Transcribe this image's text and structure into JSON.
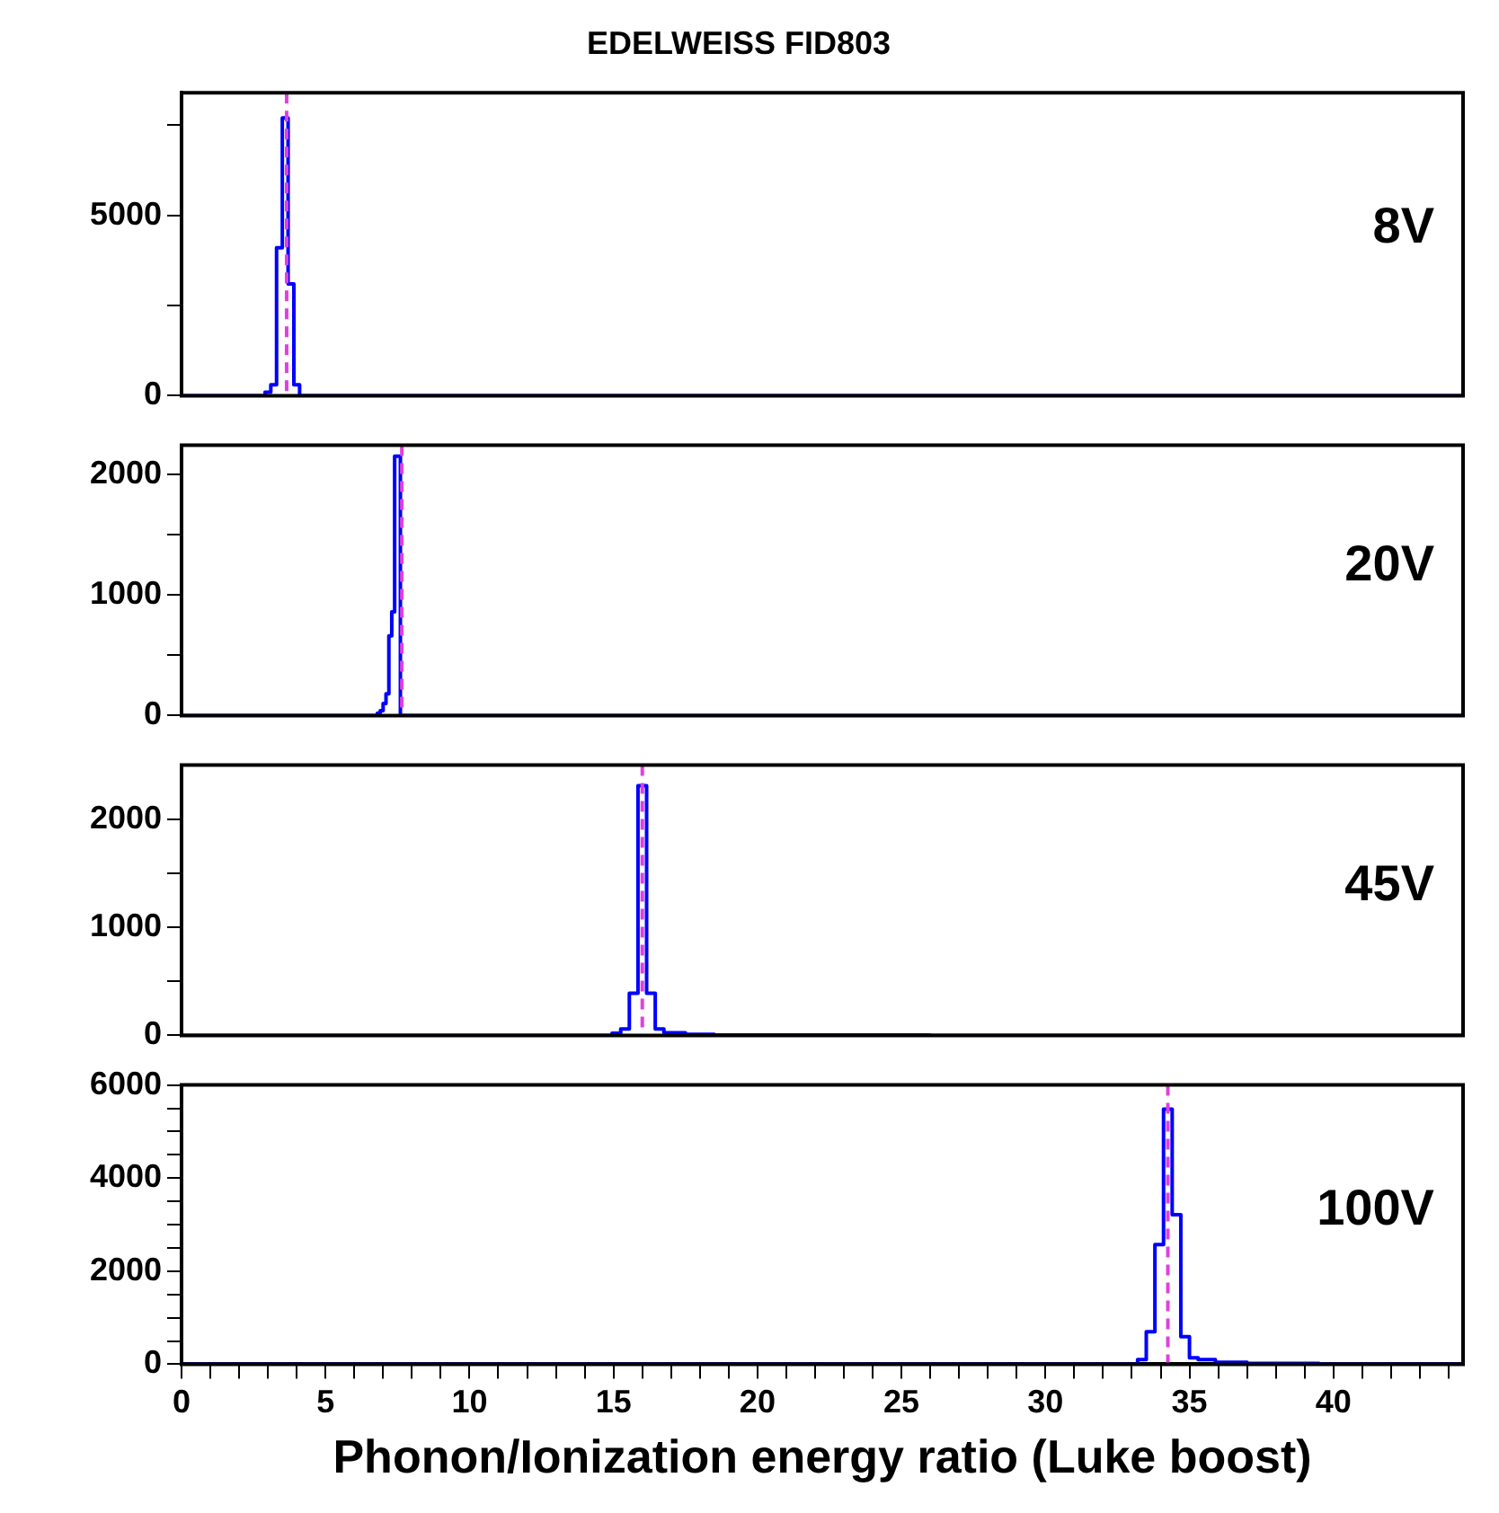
{
  "chart_data": [
    {
      "type": "histogram",
      "title": "EDELWEISS FID803",
      "bins": [
        0,
        2.9,
        3.1,
        3.3,
        3.5,
        3.7,
        3.9,
        4.1,
        44.5
      ],
      "values": [
        0,
        100,
        300,
        4100,
        7700,
        3100,
        300,
        0
      ],
      "color": "#0000ff",
      "xlim": [
        0,
        44.5
      ],
      "ylim": [
        0,
        8400
      ],
      "yticks": [
        0,
        {
          "value": 2500,
          "label": null
        },
        5000,
        {
          "value": 7500,
          "label": null
        }
      ],
      "tick_labels": "y",
      "line_style": "solid",
      "ref_lines": [
        {
          "axis": "x",
          "value": 3.65,
          "color": "#e040e0",
          "line_style": "dashed"
        }
      ],
      "annotations": [
        "8V"
      ]
    },
    {
      "type": "histogram",
      "bins": [
        0,
        6.8,
        6.9,
        7.0,
        7.1,
        7.2,
        7.3,
        7.4,
        7.5,
        7.6,
        44.5
      ],
      "values": [
        0,
        20,
        40,
        100,
        180,
        660,
        860,
        2150,
        2150,
        0
      ],
      "color": "#0000ff",
      "xlim": [
        0,
        44.5
      ],
      "ylim": [
        0,
        2240
      ],
      "yticks": [
        0,
        {
          "value": 500,
          "label": null
        },
        1000,
        {
          "value": 1500,
          "label": null
        },
        2000
      ],
      "tick_labels": "y",
      "line_style": "solid",
      "ref_lines": [
        {
          "axis": "x",
          "value": 7.65,
          "color": "#e040e0",
          "line_style": "dashed"
        }
      ],
      "annotations": [
        "20V"
      ]
    },
    {
      "type": "histogram",
      "bins": [
        0,
        14.95,
        15.25,
        15.55,
        15.85,
        16.15,
        16.45,
        16.75,
        17.5,
        18.5,
        26.0,
        44.5
      ],
      "values": [
        0,
        20,
        60,
        390,
        2310,
        390,
        60,
        25,
        10,
        4,
        0
      ],
      "color": "#0000ff",
      "xlim": [
        0,
        44.5
      ],
      "ylim": [
        0,
        2500
      ],
      "yticks": [
        0,
        {
          "value": 500,
          "label": null
        },
        1000,
        {
          "value": 1500,
          "label": null
        },
        2000
      ],
      "tick_labels": "y",
      "line_style": "solid",
      "ref_lines": [
        {
          "axis": "x",
          "value": 16.0,
          "color": "#e040e0",
          "line_style": "dashed"
        }
      ],
      "annotations": [
        "45V"
      ]
    },
    {
      "type": "histogram",
      "xlabel": "Phonon/Ionization energy ratio (Luke boost)",
      "bins": [
        0,
        33.2,
        33.5,
        33.8,
        34.1,
        34.4,
        34.7,
        35.0,
        35.3,
        35.9,
        37.0,
        39.5,
        44.5
      ],
      "values": [
        0,
        100,
        700,
        2570,
        5480,
        3210,
        590,
        140,
        100,
        40,
        15,
        0
      ],
      "color": "#0000ff",
      "xlim": [
        0,
        44.5
      ],
      "ylim": [
        0,
        6000
      ],
      "xticks": [
        0,
        {
          "value": 1,
          "label": null
        },
        {
          "value": 2,
          "label": null
        },
        {
          "value": 3,
          "label": null
        },
        {
          "value": 4,
          "label": null
        },
        5,
        {
          "value": 6,
          "label": null
        },
        {
          "value": 7,
          "label": null
        },
        {
          "value": 8,
          "label": null
        },
        {
          "value": 9,
          "label": null
        },
        10,
        {
          "value": 11,
          "label": null
        },
        {
          "value": 12,
          "label": null
        },
        {
          "value": 13,
          "label": null
        },
        {
          "value": 14,
          "label": null
        },
        15,
        {
          "value": 16,
          "label": null
        },
        {
          "value": 17,
          "label": null
        },
        {
          "value": 18,
          "label": null
        },
        {
          "value": 19,
          "label": null
        },
        20,
        {
          "value": 21,
          "label": null
        },
        {
          "value": 22,
          "label": null
        },
        {
          "value": 23,
          "label": null
        },
        {
          "value": 24,
          "label": null
        },
        25,
        {
          "value": 26,
          "label": null
        },
        {
          "value": 27,
          "label": null
        },
        {
          "value": 28,
          "label": null
        },
        {
          "value": 29,
          "label": null
        },
        30,
        {
          "value": 31,
          "label": null
        },
        {
          "value": 32,
          "label": null
        },
        {
          "value": 33,
          "label": null
        },
        {
          "value": 34,
          "label": null
        },
        35,
        {
          "value": 36,
          "label": null
        },
        {
          "value": 37,
          "label": null
        },
        {
          "value": 38,
          "label": null
        },
        {
          "value": 39,
          "label": null
        },
        40,
        {
          "value": 41,
          "label": null
        },
        {
          "value": 42,
          "label": null
        },
        {
          "value": 43,
          "label": null
        },
        {
          "value": 44,
          "label": null
        }
      ],
      "yticks": [
        0,
        {
          "value": 500,
          "label": null
        },
        {
          "value": 1000,
          "label": null
        },
        {
          "value": 1500,
          "label": null
        },
        2000,
        {
          "value": 2500,
          "label": null
        },
        {
          "value": 3000,
          "label": null
        },
        {
          "value": 3500,
          "label": null
        },
        4000,
        {
          "value": 4500,
          "label": null
        },
        {
          "value": 5000,
          "label": null
        },
        {
          "value": 5500,
          "label": null
        },
        6000
      ],
      "line_style": "solid",
      "ref_lines": [
        {
          "axis": "x",
          "value": 34.25,
          "color": "#e040e0",
          "line_style": "dashed"
        }
      ],
      "annotations": [
        "100V"
      ]
    }
  ]
}
